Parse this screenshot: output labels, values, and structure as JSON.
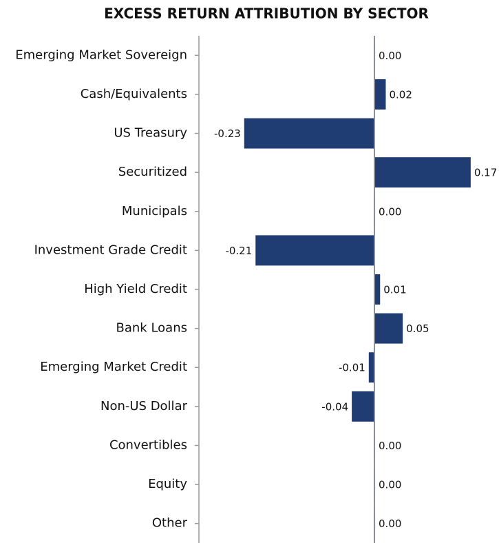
{
  "chart_data": {
    "type": "hbar",
    "title": "EXCESS RETURN ATTRIBUTION BY SECTOR",
    "categories": [
      "Emerging Market Sovereign",
      "Cash/Equivalents",
      "US Treasury",
      "Securitized",
      "Municipals",
      "Investment Grade Credit",
      "High Yield Credit",
      "Bank Loans",
      "Emerging Market Credit",
      "Non-US Dollar",
      "Convertibles",
      "Equity",
      "Other"
    ],
    "values": [
      0.0,
      0.02,
      -0.23,
      0.17,
      0.0,
      -0.21,
      0.01,
      0.05,
      -0.01,
      -0.04,
      0.0,
      0.0,
      0.0
    ],
    "value_labels": [
      "0.00",
      "0.02",
      "-0.23",
      "0.17",
      "0.00",
      "-0.21",
      "0.01",
      "0.05",
      "-0.01",
      "-0.04",
      "0.00",
      "0.00",
      "0.00"
    ],
    "color": "#1f3d73",
    "xlim": [
      -0.31,
      0.22
    ]
  }
}
